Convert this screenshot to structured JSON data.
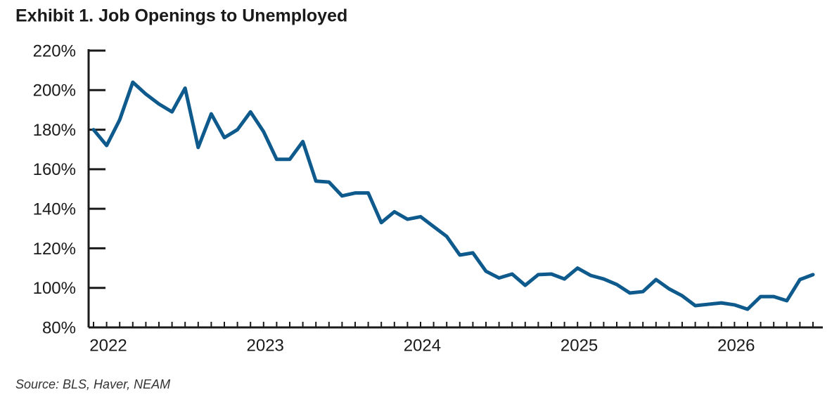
{
  "chart_data": {
    "type": "line",
    "title": "Exhibit 1. Job Openings to Unemployed",
    "source": "Source: BLS, Haver, NEAM",
    "categories": [
      "2022",
      null,
      null,
      null,
      null,
      null,
      null,
      null,
      null,
      null,
      null,
      null,
      "2023",
      null,
      null,
      null,
      null,
      null,
      null,
      null,
      null,
      null,
      null,
      null,
      "2024",
      null,
      null,
      null,
      null,
      null,
      null,
      null,
      null,
      null,
      null,
      null,
      "2025",
      null,
      null,
      null,
      null,
      null,
      null,
      null,
      null,
      null,
      null,
      null,
      "2026",
      null,
      null,
      null,
      null,
      null,
      null,
      null
    ],
    "series": [
      {
        "name": "Job Openings to Unemployed",
        "color": "#0f5a8c",
        "values": [
          180,
          172,
          185,
          204,
          198,
          193,
          189,
          201,
          171,
          188,
          176,
          180,
          189,
          179,
          165,
          165,
          174,
          154,
          153.5,
          146.5,
          148,
          148,
          133,
          138.5,
          134.7,
          136,
          131,
          126,
          116.6,
          117.7,
          108.4,
          105,
          107,
          101.3,
          106.7,
          107,
          104.5,
          110,
          106.3,
          104.5,
          101.7,
          97.4,
          98.1,
          104.2,
          99.5,
          96,
          91,
          91.7,
          92.4,
          91.4,
          89.2,
          95.6,
          95.6,
          93.5,
          104.2,
          106.7
        ]
      }
    ],
    "ylim": [
      80,
      220
    ],
    "yticks": [
      {
        "value": 80,
        "label": "80%"
      },
      {
        "value": 100,
        "label": "100%"
      },
      {
        "value": 120,
        "label": "120%"
      },
      {
        "value": 140,
        "label": "140%"
      },
      {
        "value": 160,
        "label": "160%"
      },
      {
        "value": 180,
        "label": "180%"
      },
      {
        "value": 200,
        "label": "200%"
      },
      {
        "value": 220,
        "label": "220%"
      }
    ],
    "grid": false
  }
}
